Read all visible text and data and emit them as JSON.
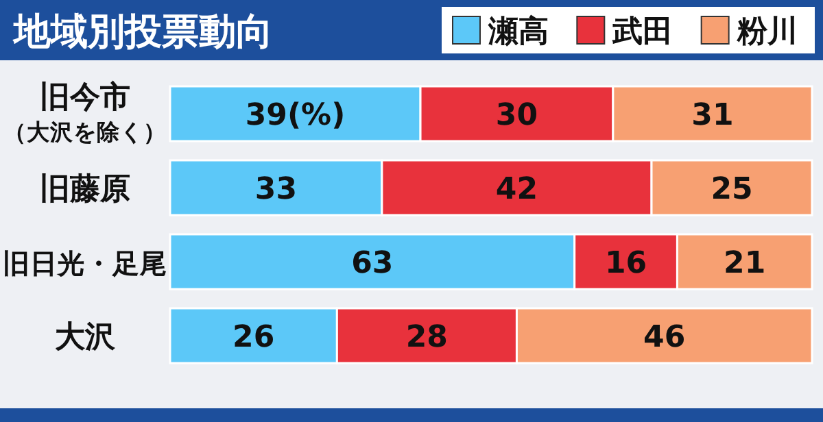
{
  "chart_data": {
    "type": "bar",
    "orientation": "horizontal",
    "stacked": true,
    "title": "地域別投票動向",
    "legend": "top right",
    "categories": [
      "旧今市（大沢を除く）",
      "旧藤原",
      "旧日光・足尾",
      "大沢"
    ],
    "series": [
      {
        "name": "瀬高",
        "color": "#5cc8f8",
        "values": [
          39,
          33,
          63,
          26
        ],
        "value_labels": [
          "39(%)",
          "33",
          "63",
          "26"
        ]
      },
      {
        "name": "武田",
        "color": "#e8323c",
        "values": [
          30,
          42,
          16,
          28
        ],
        "value_labels": [
          "30",
          "42",
          "16",
          "28"
        ]
      },
      {
        "name": "粉川",
        "color": "#f7a072",
        "values": [
          31,
          25,
          21,
          46
        ],
        "value_labels": [
          "31",
          "25",
          "21",
          "46"
        ]
      }
    ]
  }
}
